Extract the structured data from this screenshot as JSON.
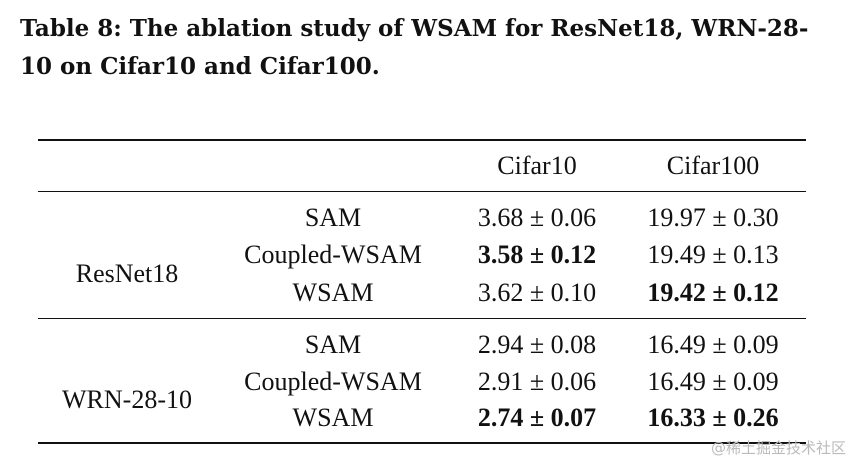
{
  "caption": "Table 8: The ablation study of WSAM for ResNet18, WRN-28-10 on Cifar10 and Cifar100.",
  "table": {
    "columns": [
      "Cifar10",
      "Cifar100"
    ],
    "groups": [
      {
        "model": "ResNet18",
        "rows": [
          {
            "method": "SAM",
            "cells": [
              "3.68 ± 0.06",
              "19.97 ± 0.30"
            ],
            "bold": [
              false,
              false
            ]
          },
          {
            "method": "Coupled-WSAM",
            "cells": [
              "3.58 ± 0.12",
              "19.49 ± 0.13"
            ],
            "bold": [
              true,
              false
            ]
          },
          {
            "method": "WSAM",
            "cells": [
              "3.62 ± 0.10",
              "19.42 ± 0.12"
            ],
            "bold": [
              false,
              true
            ]
          }
        ]
      },
      {
        "model": "WRN-28-10",
        "rows": [
          {
            "method": "SAM",
            "cells": [
              "2.94 ± 0.08",
              "16.49 ± 0.09"
            ],
            "bold": [
              false,
              false
            ]
          },
          {
            "method": "Coupled-WSAM",
            "cells": [
              "2.91 ± 0.06",
              "16.49 ± 0.09"
            ],
            "bold": [
              false,
              false
            ]
          },
          {
            "method": "WSAM",
            "cells": [
              "2.74 ± 0.07",
              "16.33 ± 0.26"
            ],
            "bold": [
              true,
              true
            ]
          }
        ]
      }
    ]
  },
  "watermark": "@稀土掘金技术社区"
}
